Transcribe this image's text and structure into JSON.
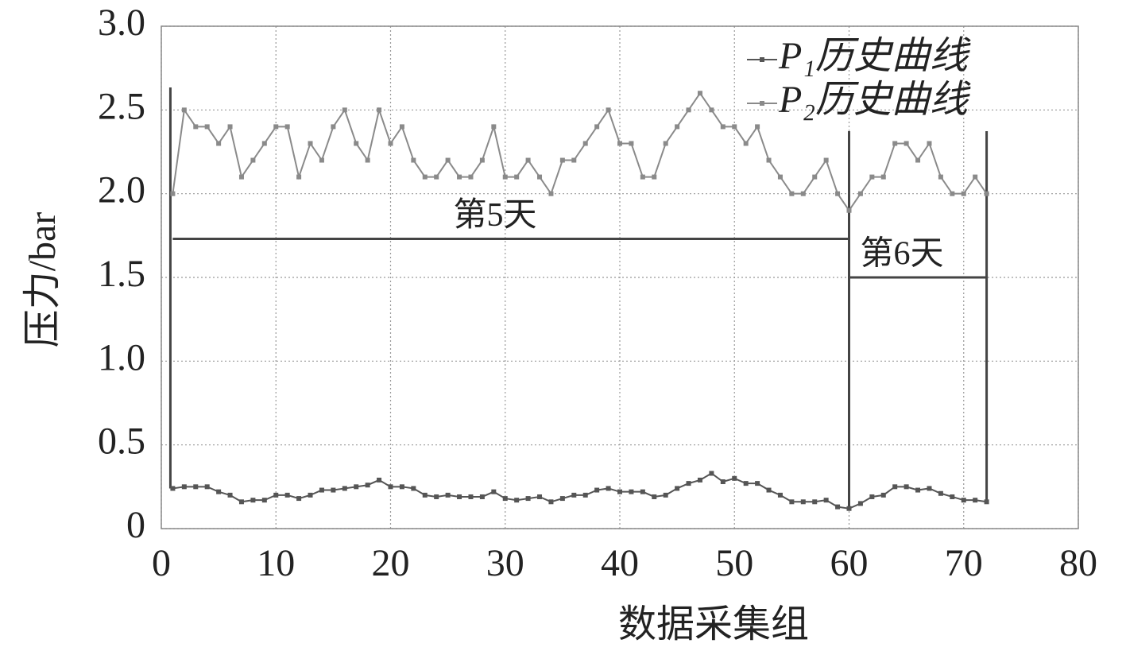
{
  "chart_data": {
    "type": "line",
    "x_label": "数据采集组",
    "y_label": "压力/bar",
    "x": [
      1,
      2,
      3,
      4,
      5,
      6,
      7,
      8,
      9,
      10,
      11,
      12,
      13,
      14,
      15,
      16,
      17,
      18,
      19,
      20,
      21,
      22,
      23,
      24,
      25,
      26,
      27,
      28,
      29,
      30,
      31,
      32,
      33,
      34,
      35,
      36,
      37,
      38,
      39,
      40,
      41,
      42,
      43,
      44,
      45,
      46,
      47,
      48,
      49,
      50,
      51,
      52,
      53,
      54,
      55,
      56,
      57,
      58,
      59,
      60,
      61,
      62,
      63,
      64,
      65,
      66,
      67,
      68,
      69,
      70,
      71,
      72
    ],
    "series": [
      {
        "name": "P₁历史曲线",
        "color": "#555555",
        "values": [
          0.24,
          0.25,
          0.25,
          0.25,
          0.22,
          0.2,
          0.16,
          0.17,
          0.17,
          0.2,
          0.2,
          0.18,
          0.2,
          0.23,
          0.23,
          0.24,
          0.25,
          0.26,
          0.29,
          0.25,
          0.25,
          0.24,
          0.2,
          0.19,
          0.2,
          0.19,
          0.19,
          0.19,
          0.22,
          0.18,
          0.17,
          0.18,
          0.19,
          0.16,
          0.18,
          0.2,
          0.2,
          0.23,
          0.24,
          0.22,
          0.22,
          0.22,
          0.19,
          0.2,
          0.24,
          0.27,
          0.29,
          0.33,
          0.28,
          0.3,
          0.27,
          0.27,
          0.23,
          0.2,
          0.16,
          0.16,
          0.16,
          0.17,
          0.13,
          0.12,
          0.15,
          0.19,
          0.2,
          0.25,
          0.25,
          0.23,
          0.24,
          0.21,
          0.19,
          0.17,
          0.17,
          0.16
        ]
      },
      {
        "name": "P₂历史曲线",
        "color": "#8a8a8a",
        "values": [
          2.0,
          2.5,
          2.4,
          2.4,
          2.3,
          2.4,
          2.1,
          2.2,
          2.3,
          2.4,
          2.4,
          2.1,
          2.3,
          2.2,
          2.4,
          2.5,
          2.3,
          2.2,
          2.5,
          2.3,
          2.4,
          2.2,
          2.1,
          2.1,
          2.2,
          2.1,
          2.1,
          2.2,
          2.4,
          2.1,
          2.1,
          2.2,
          2.1,
          2.0,
          2.2,
          2.2,
          2.3,
          2.4,
          2.5,
          2.3,
          2.3,
          2.1,
          2.1,
          2.3,
          2.4,
          2.5,
          2.6,
          2.5,
          2.4,
          2.4,
          2.3,
          2.4,
          2.2,
          2.1,
          2.0,
          2.0,
          2.1,
          2.2,
          2.0,
          1.9,
          2.0,
          2.1,
          2.1,
          2.3,
          2.3,
          2.2,
          2.3,
          2.1,
          2.0,
          2.0,
          2.1,
          2.0
        ]
      }
    ],
    "annotations": [
      {
        "text": "第5天",
        "x": [
          1,
          60
        ],
        "y": 1.73
      },
      {
        "text": "第6天",
        "x": [
          60,
          72
        ],
        "y": 1.5
      }
    ],
    "xlim": [
      0,
      80
    ],
    "xticks": [
      0,
      10,
      20,
      30,
      40,
      50,
      60,
      70,
      80
    ],
    "ylim": [
      0,
      3.0
    ],
    "yticks": [
      0,
      0.5,
      {
        "value": 1.0,
        "label": "1.0"
      },
      1.5,
      {
        "value": 2.0,
        "label": "2.0"
      },
      2.5,
      {
        "value": 3.0,
        "label": "3.0"
      }
    ],
    "grid": true,
    "legend": "upper right"
  }
}
